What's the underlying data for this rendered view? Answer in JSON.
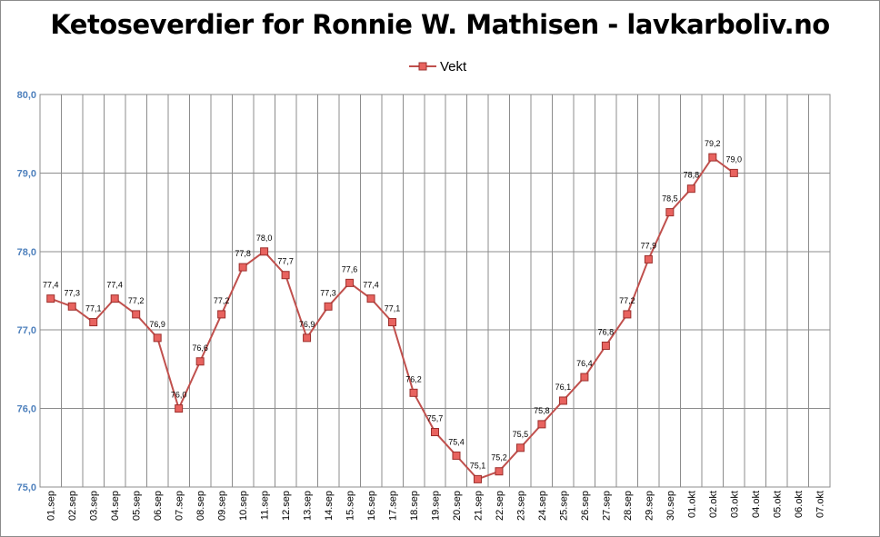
{
  "chart_data": {
    "type": "line",
    "title": "Ketoseverdier for Ronnie W. Mathisen - lavkarboliv.no",
    "categories": [
      "01.sep",
      "02.sep",
      "03.sep",
      "04.sep",
      "05.sep",
      "06.sep",
      "07.sep",
      "08.sep",
      "09.sep",
      "10.sep",
      "11.sep",
      "12.sep",
      "13.sep",
      "14.sep",
      "15.sep",
      "16.sep",
      "17.sep",
      "18.sep",
      "19.sep",
      "20.sep",
      "21.sep",
      "22.sep",
      "23.sep",
      "24.sep",
      "25.sep",
      "26.sep",
      "27.sep",
      "28.sep",
      "29.sep",
      "30.sep",
      "01.okt",
      "02.okt",
      "03.okt",
      "04.okt",
      "05.okt",
      "06.okt",
      "07.okt"
    ],
    "series": [
      {
        "name": "Vekt",
        "values": [
          77.4,
          77.3,
          77.1,
          77.4,
          77.2,
          76.9,
          76.0,
          76.6,
          77.2,
          77.8,
          78.0,
          77.7,
          76.9,
          77.3,
          77.6,
          77.4,
          77.1,
          76.2,
          75.7,
          75.4,
          75.1,
          75.2,
          75.5,
          75.8,
          76.1,
          76.4,
          76.8,
          77.2,
          77.9,
          78.5,
          78.8,
          79.2,
          79.0,
          null,
          null,
          null,
          null
        ],
        "labels": [
          "77,4",
          "77,3",
          "77,1",
          "77,4",
          "77,2",
          "76,9",
          "76,0",
          "76,6",
          "77,2",
          "77,8",
          "78,0",
          "77,7",
          "76,9",
          "77,3",
          "77,6",
          "77,4",
          "77,1",
          "76,2",
          "75,7",
          "75,4",
          "75,1",
          "75,2",
          "75,5",
          "75,8",
          "76,1",
          "76,4",
          "76,8",
          "77,2",
          "77,9",
          "78,5",
          "78,8",
          "79,2",
          "79,0",
          null,
          null,
          null,
          null
        ]
      }
    ],
    "ylim": [
      75.0,
      80.0
    ],
    "yticks": [
      75.0,
      76.0,
      77.0,
      78.0,
      79.0,
      80.0
    ],
    "ytick_labels": [
      "75,0",
      "76,0",
      "77,0",
      "78,0",
      "79,0",
      "80,0"
    ],
    "grid": true,
    "legend_position": "top",
    "colors": {
      "line": "#c0504d",
      "marker_fill": "#e8635f",
      "marker_edge": "#9c2f2c",
      "grid": "#8c8c8c",
      "ytick_text": "#4f81bd",
      "plot_border": "#8c8c8c"
    }
  }
}
